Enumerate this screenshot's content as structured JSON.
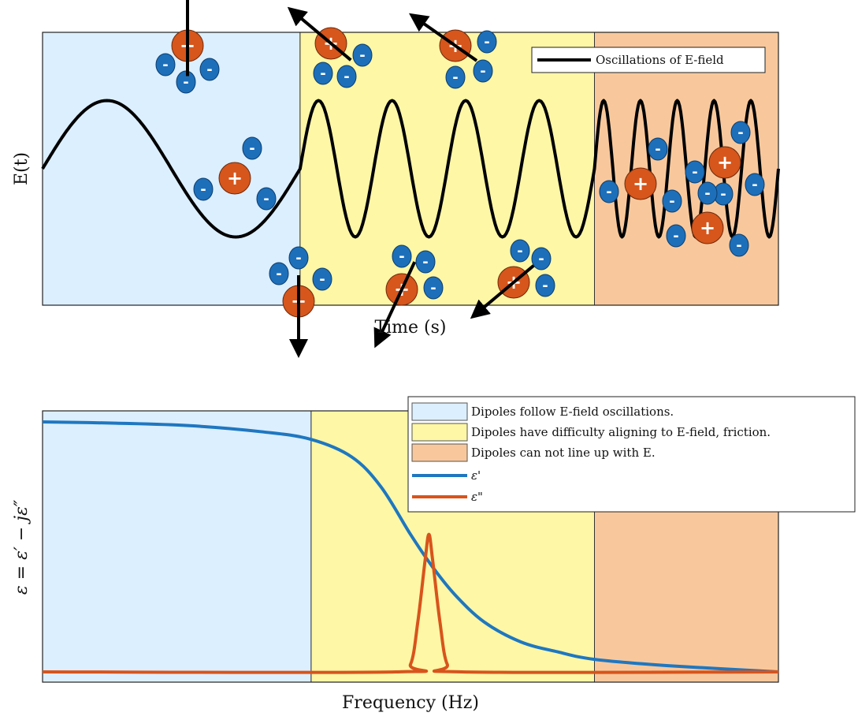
{
  "colors": {
    "region_follow": "#dcefff",
    "region_friction": "#fdf7a6",
    "region_cannot": "#f8c89c",
    "plus_charge": "#d6561c",
    "minus_charge": "#1d6fba",
    "eps_prime": "#1f77c0",
    "eps_double_prime": "#d8541c",
    "field_line": "#000000"
  },
  "chart_data": [
    {
      "type": "line",
      "title": "",
      "xlabel": "Time (s)",
      "ylabel": "E(t)",
      "grid": false,
      "legend_position": "top-right",
      "series": [
        {
          "name": "Oscillations of E-field",
          "color": "#000000"
        }
      ],
      "regions": [
        {
          "name": "follow",
          "x_range": [
            0,
            0.35
          ]
        },
        {
          "name": "friction",
          "x_range": [
            0.35,
            0.75
          ]
        },
        {
          "name": "cannot",
          "x_range": [
            0.75,
            1.0
          ]
        }
      ],
      "wave": {
        "periods": [
          {
            "x_range": [
              0.0,
              0.35
            ],
            "cycles": 1
          },
          {
            "x_range": [
              0.35,
              0.75
            ],
            "cycles": 4
          },
          {
            "x_range": [
              0.75,
              1.0
            ],
            "cycles": 5
          }
        ],
        "amplitude": 0.5
      },
      "dipoles": {
        "plus_label": "+",
        "minus_label": "-",
        "count": 10
      }
    },
    {
      "type": "line",
      "title": "",
      "xlabel": "Frequency (Hz)",
      "ylabel": "ε = ε′ − jε″",
      "grid": false,
      "legend_position": "top-right",
      "regions": [
        {
          "name": "Dipoles follow E-field oscillations.",
          "x_range": [
            0,
            0.365
          ]
        },
        {
          "name": "Dipoles have difficulty aligning to E-field, friction.",
          "x_range": [
            0.365,
            0.75
          ]
        },
        {
          "name": "Dipoles can not line up with E.",
          "x_range": [
            0.75,
            1.0
          ]
        }
      ],
      "series": [
        {
          "name": "ε'",
          "color": "#1f77c0",
          "x": [
            0.0,
            0.1,
            0.2,
            0.3,
            0.365,
            0.42,
            0.46,
            0.5,
            0.53,
            0.56,
            0.6,
            0.65,
            0.7,
            0.75,
            0.85,
            1.0
          ],
          "y": [
            1.0,
            0.995,
            0.985,
            0.96,
            0.93,
            0.86,
            0.74,
            0.55,
            0.42,
            0.31,
            0.2,
            0.12,
            0.08,
            0.05,
            0.025,
            0.0
          ]
        },
        {
          "name": "ε\"",
          "color": "#d8541c",
          "x": [
            0.0,
            0.48,
            0.5,
            0.51,
            0.52,
            0.525,
            0.53,
            0.54,
            0.55,
            0.57,
            1.0
          ],
          "y": [
            0.0,
            0.0,
            0.03,
            0.2,
            0.45,
            0.55,
            0.45,
            0.2,
            0.03,
            0.0,
            0.0
          ]
        }
      ],
      "ylim": [
        0,
        1.05
      ]
    }
  ]
}
